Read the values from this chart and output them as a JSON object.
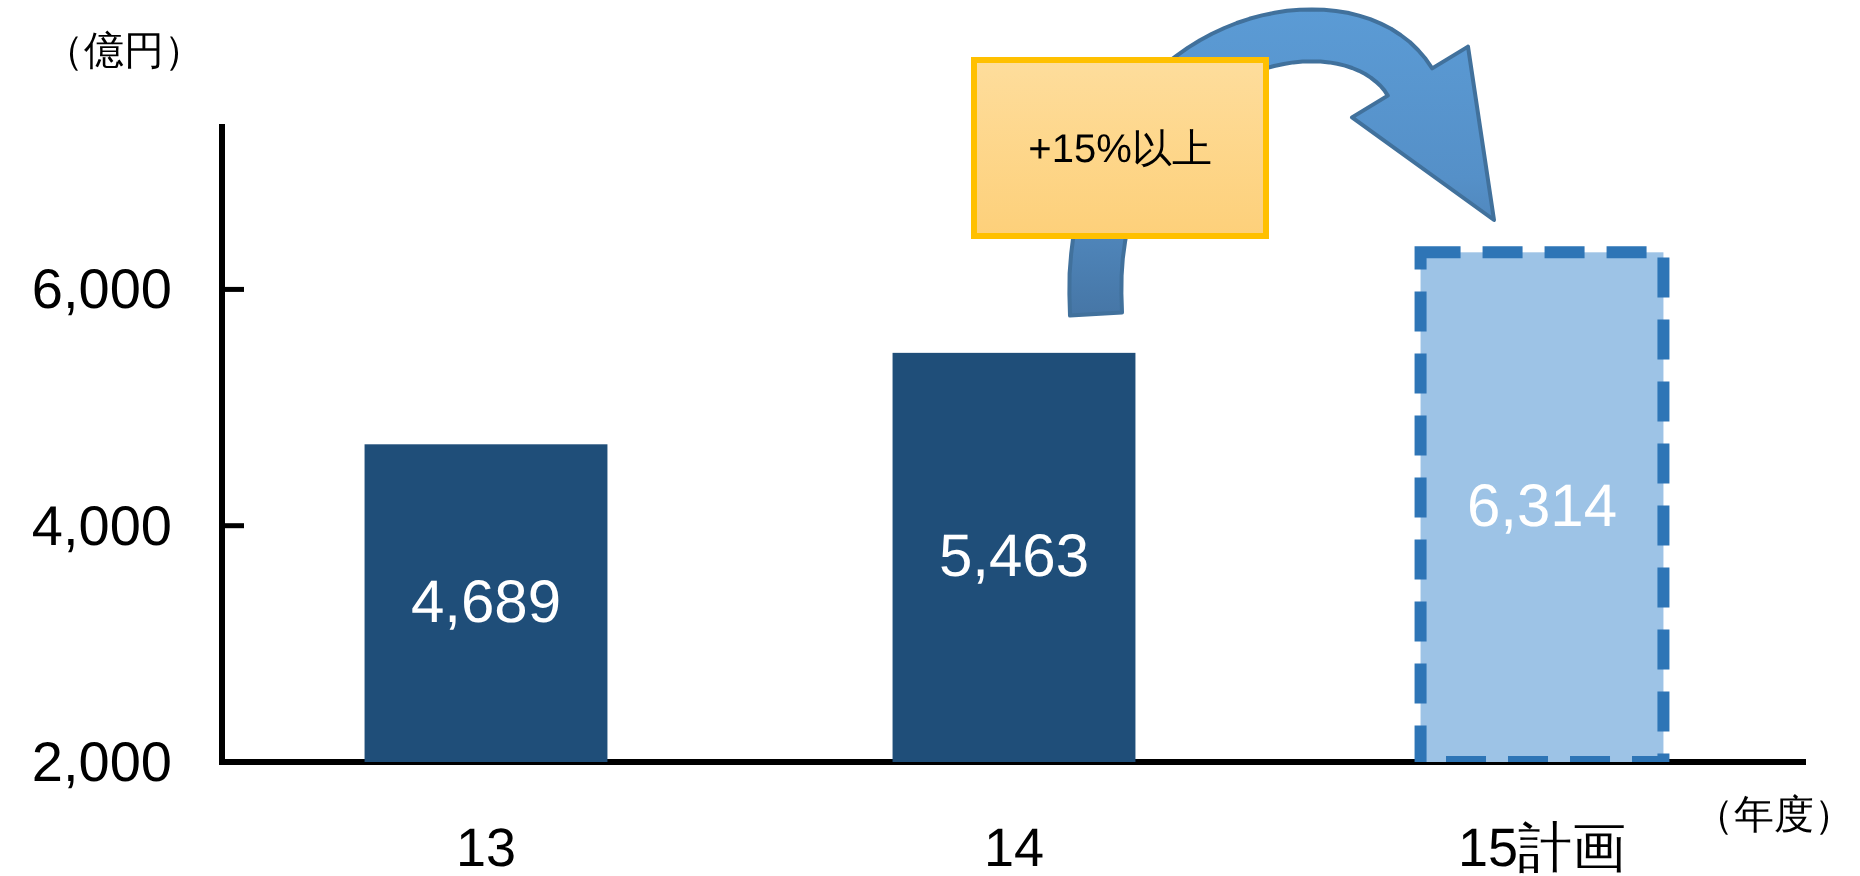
{
  "chart_data": {
    "type": "bar",
    "ylabel": "（億円）",
    "xlabel": "（年度）",
    "categories": [
      "13",
      "14",
      "15計画"
    ],
    "stacked": true,
    "series": [
      {
        "color": "#1f4e79",
        "values": [
          4689,
          5463,
          null
        ],
        "value_labels": [
          "4,689",
          "5,463",
          null
        ]
      },
      {
        "color": "#9dc3e6",
        "line_style": "dashed",
        "values": [
          null,
          null,
          6314
        ],
        "value_labels": [
          null,
          null,
          "6,314"
        ]
      }
    ],
    "ylim": [
      2000,
      7400
    ],
    "yticks": [
      {
        "value": 2000,
        "label": "2,000"
      },
      {
        "value": 4000,
        "label": "4,000"
      },
      {
        "value": 6000,
        "label": "6,000"
      }
    ],
    "annotations": [
      "+15%以上"
    ]
  }
}
